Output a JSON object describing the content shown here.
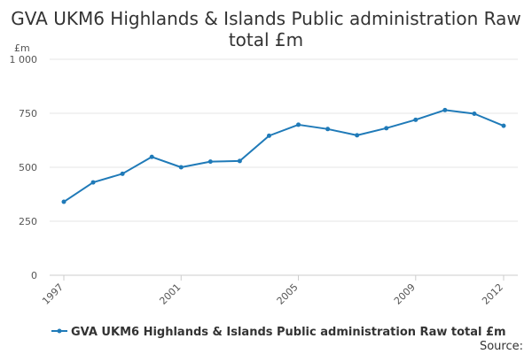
{
  "chart_data": {
    "type": "line",
    "title_line1": "GVA UKM6 Highlands & Islands Public administration Raw",
    "title_line2": "total £m",
    "ylabel": "£m",
    "x": [
      1997,
      1998,
      1999,
      2000,
      2001,
      2002,
      2003,
      2004,
      2005,
      2006,
      2007,
      2008,
      2009,
      2010,
      2011,
      2012
    ],
    "x_tick_labels": [
      "1997",
      "2001",
      "2005",
      "2009",
      "2012"
    ],
    "x_tick_values": [
      1997,
      2001,
      2005,
      2009,
      2012
    ],
    "y_ticks": [
      0,
      250,
      500,
      750,
      1000
    ],
    "y_tick_labels": [
      "0",
      "250",
      "500",
      "750",
      "1 000"
    ],
    "ylim": [
      0,
      1000
    ],
    "series": [
      {
        "name": "GVA UKM6 Highlands & Islands Public administration Raw total £m",
        "color": "#1f7ab8",
        "values": [
          340,
          430,
          470,
          548,
          500,
          526,
          529,
          646,
          697,
          677,
          648,
          681,
          720,
          765,
          748,
          692
        ]
      }
    ],
    "grid": true,
    "legend_position": "bottom-left"
  },
  "source_label": "Source:"
}
